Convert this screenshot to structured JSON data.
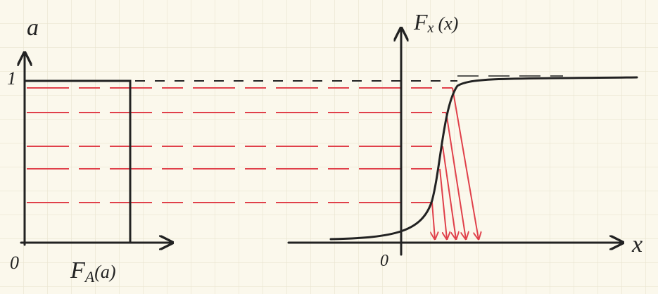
{
  "left_plot": {
    "y_label": "a",
    "y_tick": "1",
    "origin": "0",
    "caption": {
      "main": "F",
      "sub": "A",
      "arg": "(a)"
    }
  },
  "right_plot": {
    "y_label": {
      "main": "F",
      "sub": "x",
      "arg": "(x)"
    },
    "origin": "0",
    "x_label": "x"
  }
}
